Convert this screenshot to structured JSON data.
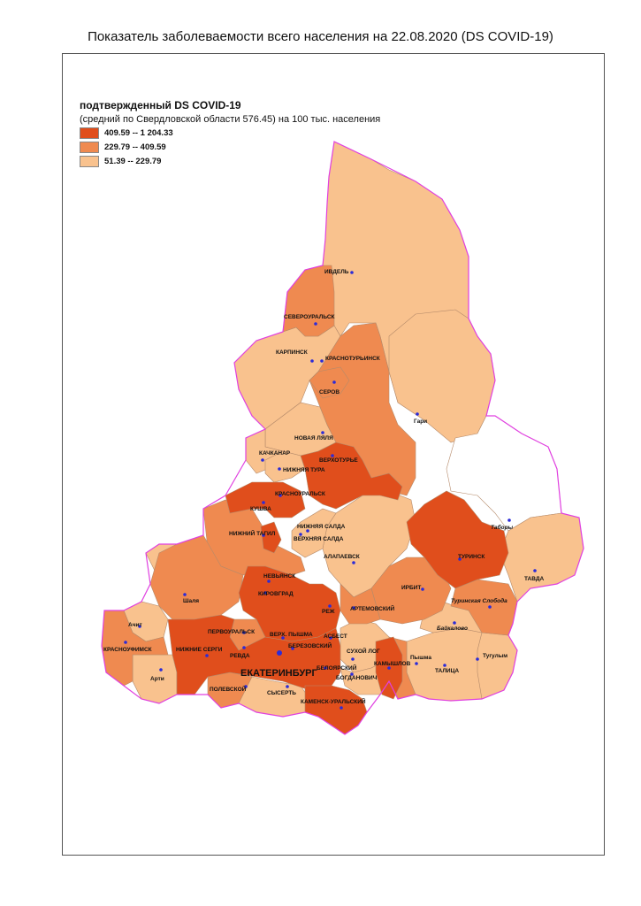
{
  "title": "Показатель заболеваемости всего населения  на 22.08.2020 (DS  COVID-19)",
  "legend": {
    "title": "подтвержденный DS  COVID-19",
    "subtitle": "(средний по Свердловской области 576.45) на 100 тыс. населения",
    "items": [
      {
        "label": "409.59 -- 1 204.33",
        "color": "#e04e1c"
      },
      {
        "label": "229.79 --    409.59",
        "color": "#ef8a50"
      },
      {
        "label": "51.39 --    229.79",
        "color": "#f9c28e"
      }
    ]
  },
  "colors": {
    "high": "#e04e1c",
    "mid": "#ef8a50",
    "low": "#f9c28e",
    "none": "#ffffff",
    "border": "#e040e0",
    "inner_border": "#b58a6a",
    "dot": "#2b2bd8"
  },
  "cities": {
    "ivdel": "ИВДЕЛЬ",
    "severouralsk": "СЕВЕРОУРАЛЬСК",
    "karpinsk": "КАРПИНСК",
    "krasnoturinsk": "КРАСНОТУРЬИНСК",
    "serov": "СЕРОВ",
    "gari": "Гари",
    "novaya_lyalya": "НОВАЯ ЛЯЛЯ",
    "kachkanar": "КАЧКАНАР",
    "verkhoturye": "ВЕРХОТУРЬЕ",
    "nizhnyaya_tura": "НИЖНЯЯ ТУРА",
    "krasnouralsk": "КРАСНОУРАЛЬСК",
    "kushva": "КУШВА",
    "tabory": "Таборы",
    "nizhnyaya_salda": "НИЖНЯЯ САЛДА",
    "nizhny_tagil": "НИЖНИЙ ТАГИЛ",
    "verkhnyaya_salda": "ВЕРХНЯЯ САЛДА",
    "turinsk": "ТУРИНСК",
    "alapaevsk": "АЛАПАЕВСК",
    "tavda": "ТАВДА",
    "nevyansk": "НЕВЬЯНСК",
    "shali": "Шаля",
    "kirovgrad": "КИРОВГРАД",
    "irbit": "ИРБИТ",
    "turinskaya_sloboda": "Туринская Слобода",
    "rezh": "РЕЖ",
    "artemovsky": "АРТЕМОВСКИЙ",
    "achit": "Ачит",
    "baykalovo": "Байкалово",
    "pervouralsk": "ПЕРВОУРАЛЬСК",
    "verkh_pyshma": "ВЕРХ. ПЫШМА",
    "asbest": "АСБЕСТ",
    "krasnoufimsk": "КРАСНОУФИМСК",
    "nizhnie_sergi": "НИЖНИЕ СЕРГИ",
    "berezovsky": "БЕРЕЗОВСКИЙ",
    "sukhoy_log": "СУХОЙ ЛОГ",
    "kamyshlov": "КАМЫШЛОВ",
    "pyshma": "Пышма",
    "tugulym": "Тугулым",
    "revda": "РЕВДА",
    "arti": "Арти",
    "beloyarsky": "БЕЛОЯРСКИЙ",
    "talitsa": "ТАЛИЦА",
    "ekaterinburg": "ЕКАТЕРИНБУРГ",
    "bogdanovich": "БОГДАНОВИЧ",
    "polevskoy": "ПОЛЕВСКОЙ",
    "sysert": "СЫСЕРТЬ",
    "kamensk_uralsky": "КАМЕНСК-УРАЛЬСКИЙ"
  }
}
